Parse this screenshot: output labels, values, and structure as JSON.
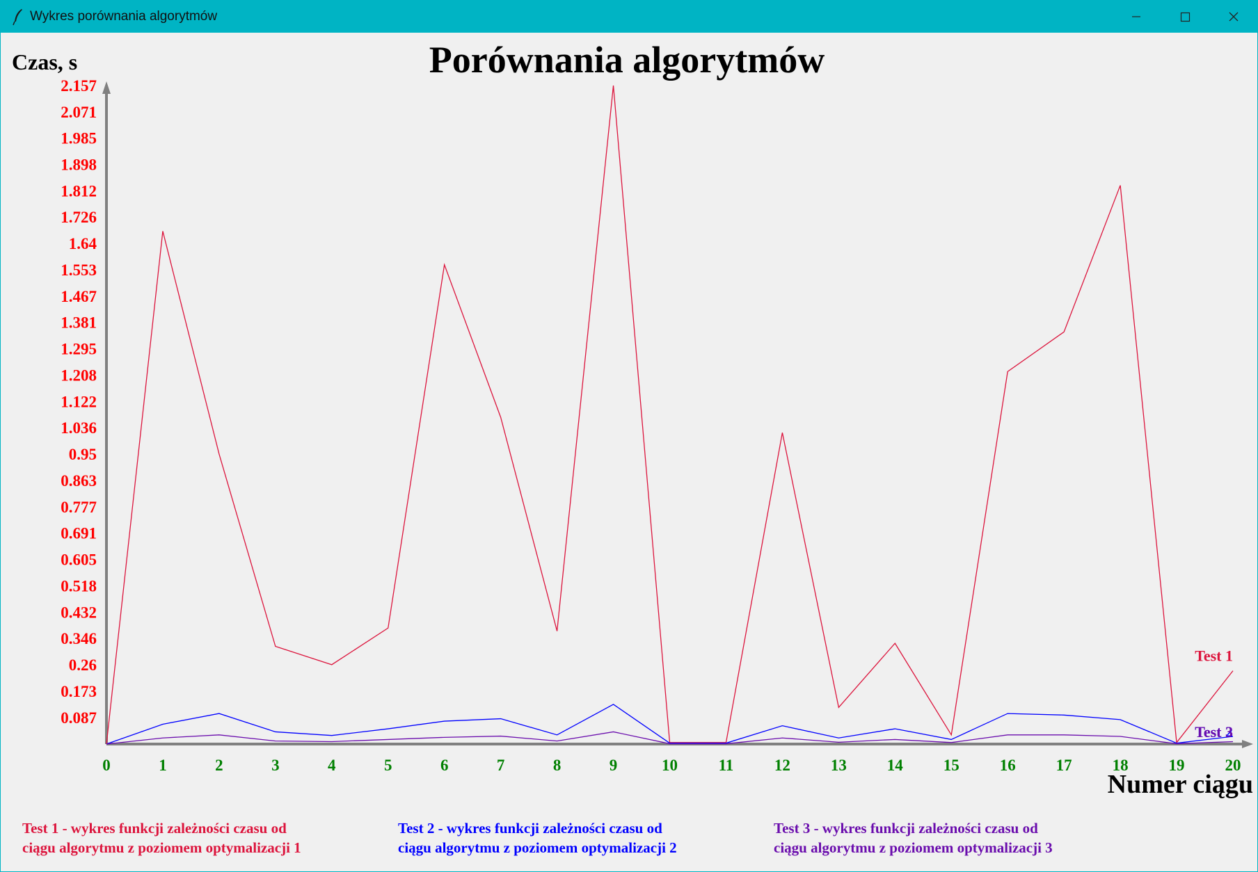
{
  "window": {
    "title": "Wykres porównania algorytmów",
    "accent": "#00b4c4",
    "controls": {
      "minimize": "minimize-icon",
      "maximize": "maximize-icon",
      "close": "close-icon"
    }
  },
  "chart_data": {
    "type": "line",
    "title": "Porównania algorytmów",
    "xlabel": "Numer ciągu",
    "ylabel": "Czas, s",
    "x": [
      0,
      1,
      2,
      3,
      4,
      5,
      6,
      7,
      8,
      9,
      10,
      11,
      12,
      13,
      14,
      15,
      16,
      17,
      18,
      19,
      20
    ],
    "xlim": [
      0,
      20
    ],
    "ylim": [
      0,
      2.157
    ],
    "yticks": [
      "2.157",
      "2.071",
      "1.985",
      "1.898",
      "1.812",
      "1.726",
      "1.64",
      "1.553",
      "1.467",
      "1.381",
      "1.295",
      "1.208",
      "1.122",
      "1.036",
      "0.95",
      "0.863",
      "0.777",
      "0.691",
      "0.605",
      "0.518",
      "0.432",
      "0.346",
      "0.26",
      "0.173",
      "0.087"
    ],
    "ytick_color": "#ff0000",
    "xtick_color": "#008000",
    "grid": false,
    "series": [
      {
        "name": "Test 1",
        "color": "#dc143c",
        "values": [
          0.0,
          1.68,
          0.95,
          0.32,
          0.26,
          0.38,
          1.57,
          1.07,
          0.37,
          2.157,
          0.005,
          0.005,
          1.02,
          0.12,
          0.33,
          0.03,
          1.22,
          1.35,
          1.83,
          0.005,
          0.24
        ]
      },
      {
        "name": "Test 2",
        "color": "#0000ff",
        "values": [
          0.0,
          0.065,
          0.1,
          0.04,
          0.028,
          0.05,
          0.075,
          0.083,
          0.03,
          0.13,
          0.003,
          0.003,
          0.06,
          0.02,
          0.05,
          0.015,
          0.1,
          0.095,
          0.08,
          0.003,
          0.025
        ]
      },
      {
        "name": "Test 3",
        "color": "#6a0dad",
        "values": [
          0.0,
          0.02,
          0.03,
          0.01,
          0.008,
          0.015,
          0.022,
          0.026,
          0.01,
          0.04,
          0.001,
          0.001,
          0.02,
          0.006,
          0.015,
          0.005,
          0.03,
          0.03,
          0.025,
          0.001,
          0.008
        ]
      }
    ]
  },
  "legend": [
    {
      "line1": "Test 1 - wykres funkcji zależności czasu od",
      "line2": "ciągu algorytmu z poziomem optymalizacji 1",
      "color": "#dc143c"
    },
    {
      "line1": "Test 2 - wykres funkcji zależności czasu od",
      "line2": "ciągu algorytmu z poziomem optymalizacji 2",
      "color": "#0000ff"
    },
    {
      "line1": "Test 3 - wykres funkcji zależności czasu od",
      "line2": "ciągu algorytmu z poziomem optymalizacji 3",
      "color": "#6a0dad"
    }
  ]
}
